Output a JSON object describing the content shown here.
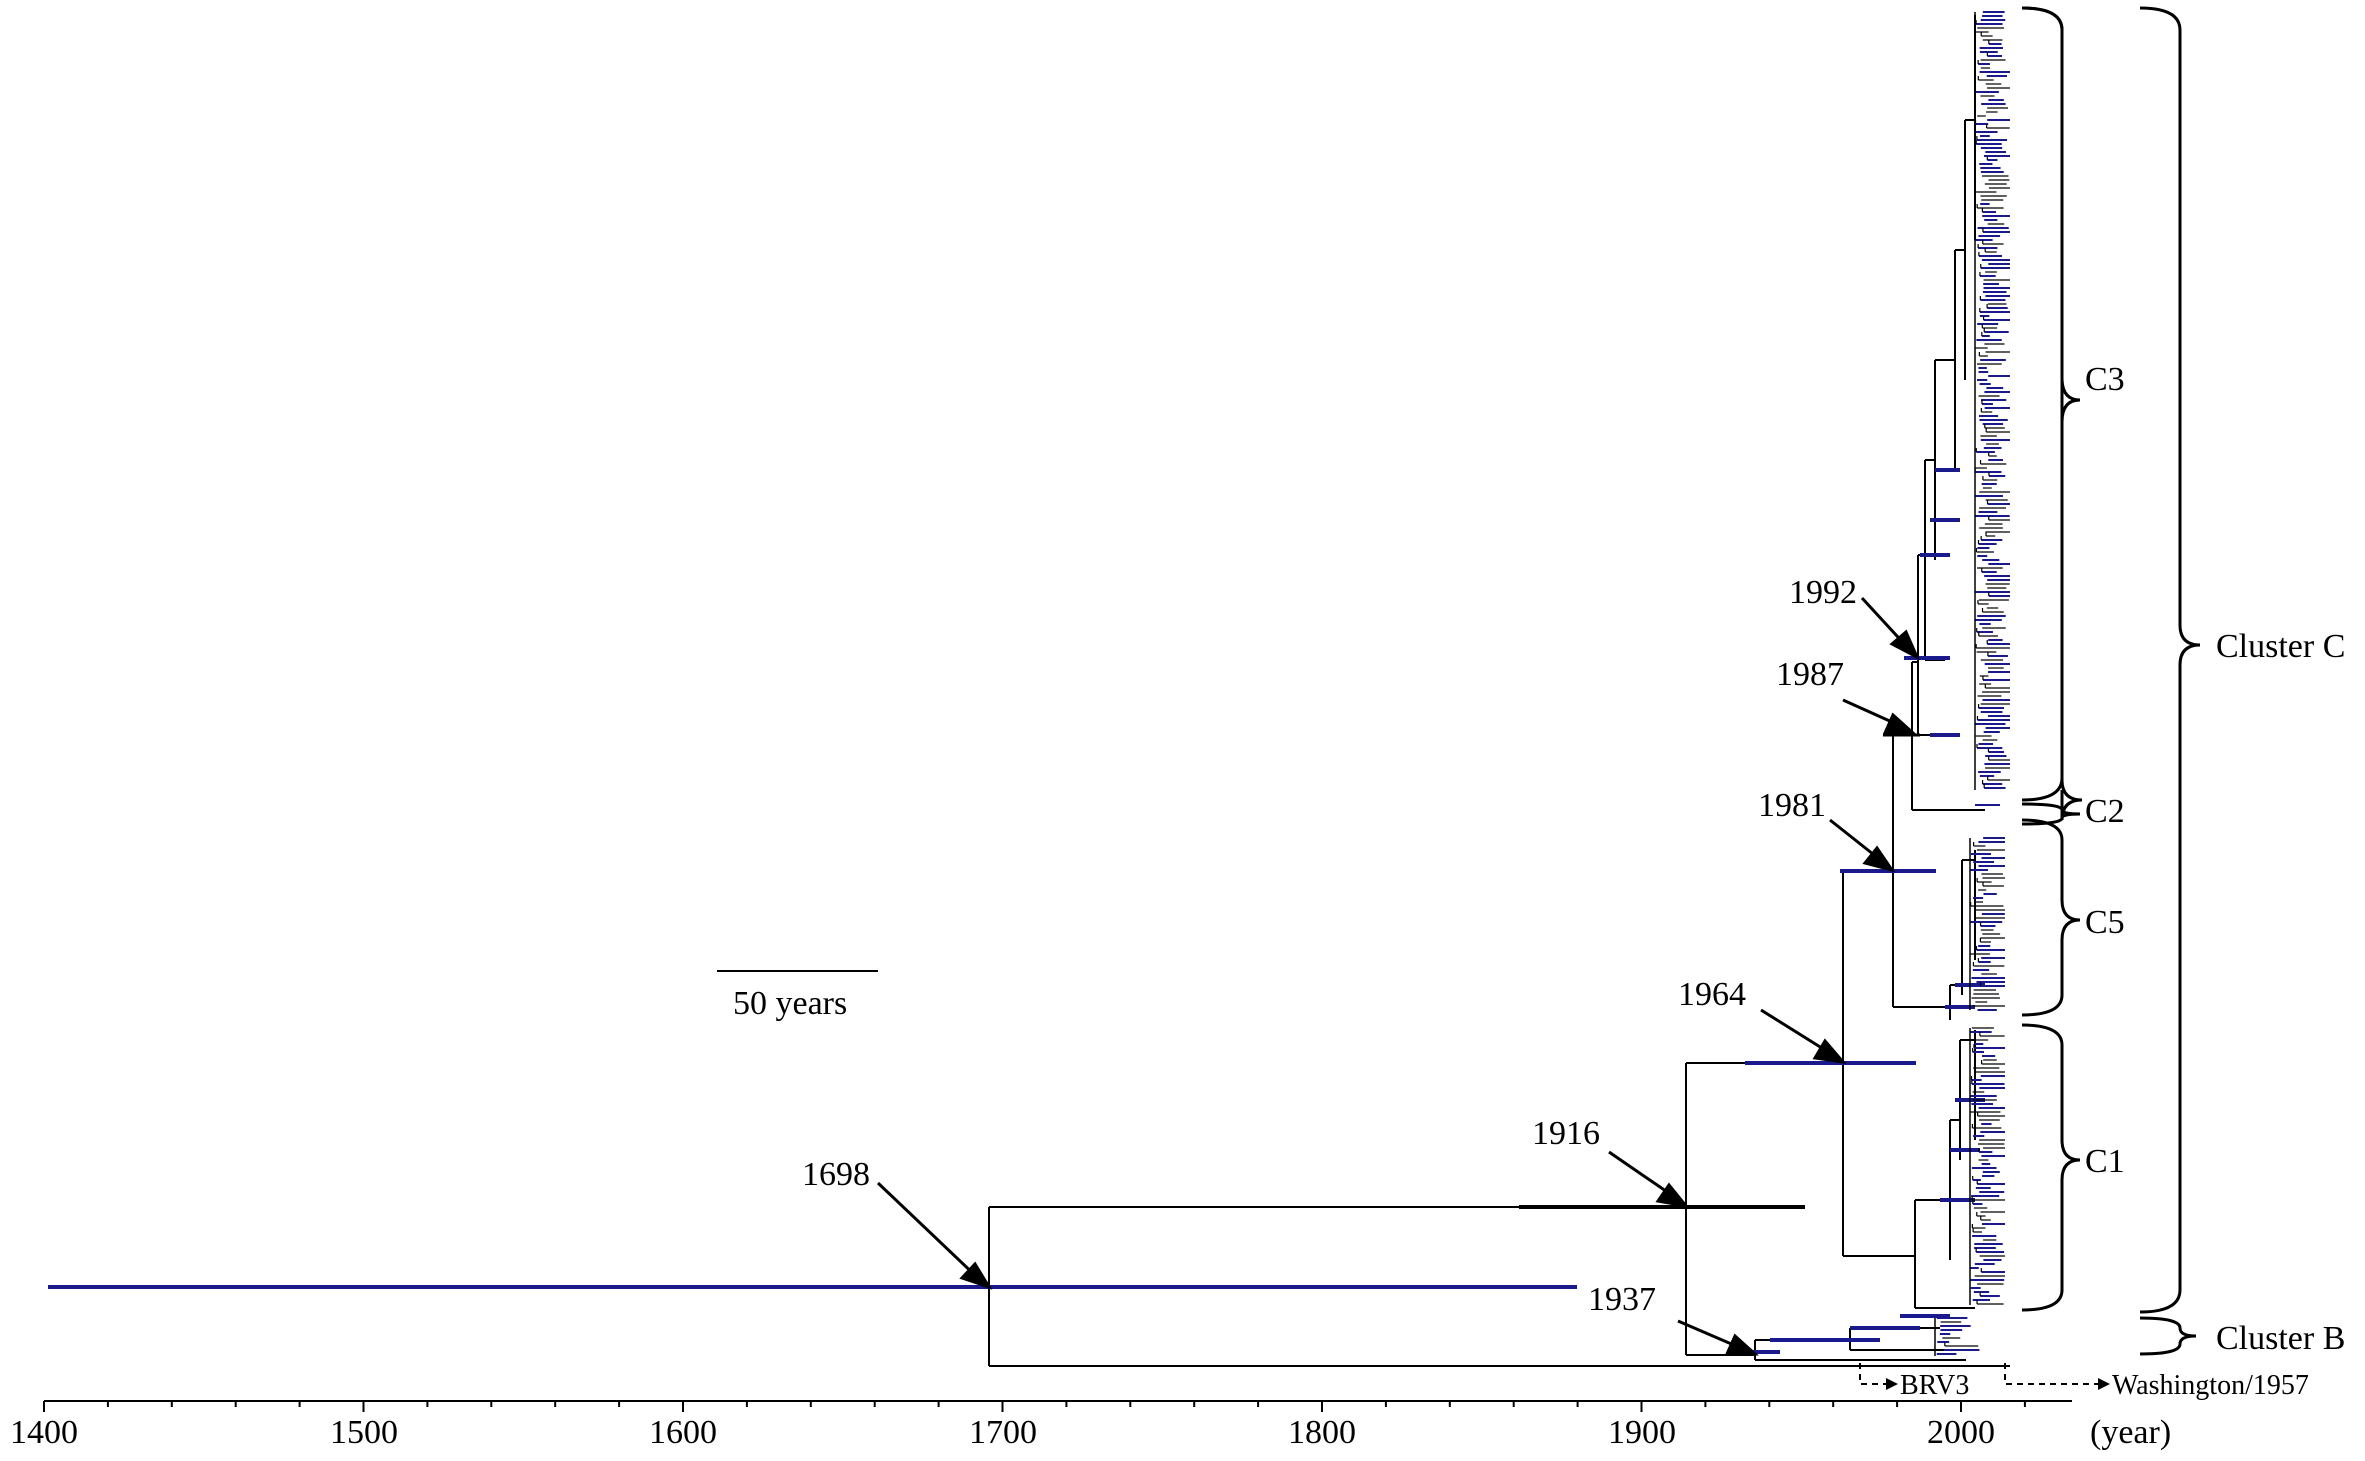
{
  "colors": {
    "hpd_bar": "#1a1a8c",
    "branch": "#000000",
    "background": "#ffffff"
  },
  "axis": {
    "ticks": [
      "1400",
      "1500",
      "1600",
      "1700",
      "1800",
      "1900",
      "2000"
    ],
    "unit_label": "(year)"
  },
  "scale_bar": {
    "label": "50 years"
  },
  "node_dates": [
    {
      "label": "1698"
    },
    {
      "label": "1916"
    },
    {
      "label": "1937"
    },
    {
      "label": "1964"
    },
    {
      "label": "1981"
    },
    {
      "label": "1987"
    },
    {
      "label": "1992"
    }
  ],
  "clades": {
    "c3": "C3",
    "c2": "C2",
    "c5": "C5",
    "c1": "C1",
    "cluster_c": "Cluster C",
    "cluster_b": "Cluster B"
  },
  "strains": {
    "brv3": "BRV3",
    "washington": "Washington/1957"
  }
}
